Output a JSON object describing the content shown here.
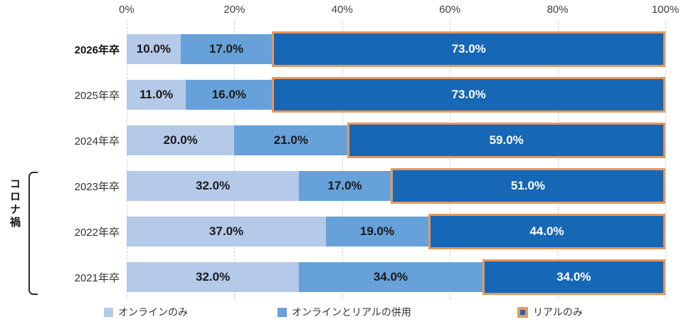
{
  "chart_data": {
    "type": "bar",
    "orientation": "horizontal-stacked-100",
    "categories": [
      "2026年卒",
      "2025年卒",
      "2024年卒",
      "2023年卒",
      "2022年卒",
      "2021年卒"
    ],
    "series": [
      {
        "name": "オンラインのみ",
        "color": "#b5c9e8",
        "text_color": "#1a1a1a",
        "values": [
          10.0,
          11.0,
          20.0,
          32.0,
          37.0,
          32.0
        ]
      },
      {
        "name": "オンラインとリアルの併用",
        "color": "#67a1d9",
        "text_color": "#1a1a1a",
        "values": [
          17.0,
          16.0,
          21.0,
          17.0,
          19.0,
          34.0
        ]
      },
      {
        "name": "リアルのみ",
        "color": "#1667b5",
        "text_color": "#ffffff",
        "border_color": "#e8975c",
        "values": [
          73.0,
          73.0,
          59.0,
          51.0,
          44.0,
          34.0
        ]
      }
    ],
    "x_ticks": [
      "0%",
      "20%",
      "40%",
      "60%",
      "80%",
      "100%"
    ],
    "xlim": [
      0,
      100
    ],
    "value_suffix": "%",
    "value_decimals": 1,
    "grid": "vertical-dashed",
    "legend_position": "bottom",
    "emphasized_category_index": 0,
    "annotation": {
      "label": "コロナ禍",
      "category_indices": [
        3,
        4,
        5
      ]
    }
  }
}
